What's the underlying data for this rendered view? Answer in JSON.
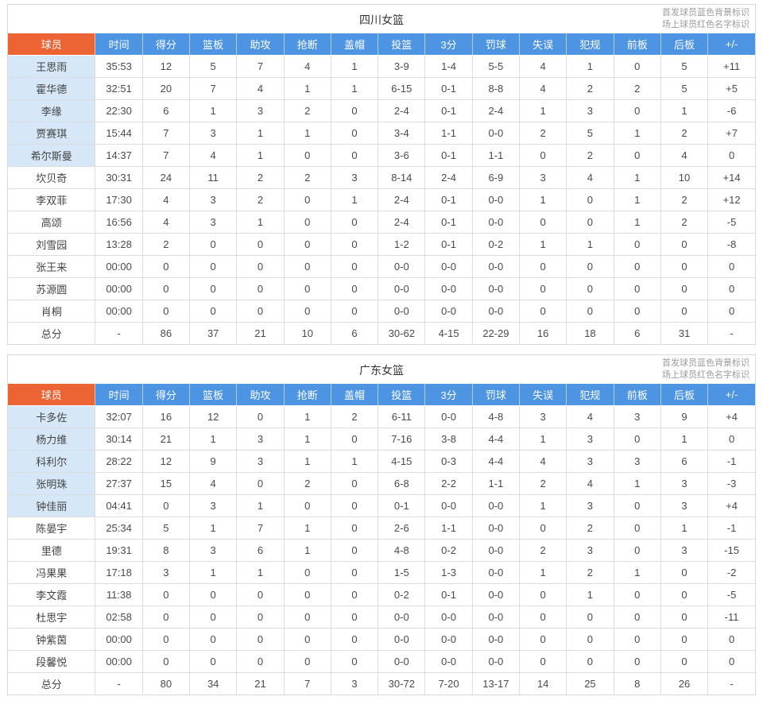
{
  "legend": {
    "line1": "首发球员蓝色背景标识",
    "line2": "场上球员红色名字标识"
  },
  "columns": [
    "球员",
    "时间",
    "得分",
    "篮板",
    "助攻",
    "抢断",
    "盖帽",
    "投篮",
    "3分",
    "罚球",
    "失误",
    "犯规",
    "前板",
    "后板",
    "+/-"
  ],
  "colors": {
    "header_player_bg": "#ec6434",
    "header_stat_bg": "#4d94e3",
    "starter_row_bg": "#d6e7f8",
    "oncourt_name_color": "#e05a4e"
  },
  "tables": [
    {
      "title": "四川女篮",
      "rows": [
        {
          "name": "王思雨",
          "starter": true,
          "cells": [
            "35:53",
            "12",
            "5",
            "7",
            "4",
            "1",
            "3-9",
            "1-4",
            "5-5",
            "4",
            "1",
            "0",
            "5",
            "+11"
          ]
        },
        {
          "name": "霍华德",
          "starter": true,
          "cells": [
            "32:51",
            "20",
            "7",
            "4",
            "1",
            "1",
            "6-15",
            "0-1",
            "8-8",
            "4",
            "2",
            "2",
            "5",
            "+5"
          ]
        },
        {
          "name": "李缘",
          "starter": true,
          "cells": [
            "22:30",
            "6",
            "1",
            "3",
            "2",
            "0",
            "2-4",
            "0-1",
            "2-4",
            "1",
            "3",
            "0",
            "1",
            "-6"
          ]
        },
        {
          "name": "贾赛琪",
          "starter": true,
          "cells": [
            "15:44",
            "7",
            "3",
            "1",
            "1",
            "0",
            "3-4",
            "1-1",
            "0-0",
            "2",
            "5",
            "1",
            "2",
            "+7"
          ]
        },
        {
          "name": "希尔斯曼",
          "starter": true,
          "cells": [
            "14:37",
            "7",
            "4",
            "1",
            "0",
            "0",
            "3-6",
            "0-1",
            "1-1",
            "0",
            "2",
            "0",
            "4",
            "0"
          ]
        },
        {
          "name": "坎贝奇",
          "starter": false,
          "cells": [
            "30:31",
            "24",
            "11",
            "2",
            "2",
            "3",
            "8-14",
            "2-4",
            "6-9",
            "3",
            "4",
            "1",
            "10",
            "+14"
          ]
        },
        {
          "name": "李双菲",
          "starter": false,
          "cells": [
            "17:30",
            "4",
            "3",
            "2",
            "0",
            "1",
            "2-4",
            "0-1",
            "0-0",
            "1",
            "0",
            "1",
            "2",
            "+12"
          ]
        },
        {
          "name": "高颂",
          "starter": false,
          "cells": [
            "16:56",
            "4",
            "3",
            "1",
            "0",
            "0",
            "2-4",
            "0-1",
            "0-0",
            "0",
            "0",
            "1",
            "2",
            "-5"
          ]
        },
        {
          "name": "刘雪园",
          "starter": false,
          "cells": [
            "13:28",
            "2",
            "0",
            "0",
            "0",
            "0",
            "1-2",
            "0-1",
            "0-2",
            "1",
            "1",
            "0",
            "0",
            "-8"
          ]
        },
        {
          "name": "张王来",
          "starter": false,
          "cells": [
            "00:00",
            "0",
            "0",
            "0",
            "0",
            "0",
            "0-0",
            "0-0",
            "0-0",
            "0",
            "0",
            "0",
            "0",
            "0"
          ]
        },
        {
          "name": "苏源圆",
          "starter": false,
          "cells": [
            "00:00",
            "0",
            "0",
            "0",
            "0",
            "0",
            "0-0",
            "0-0",
            "0-0",
            "0",
            "0",
            "0",
            "0",
            "0"
          ]
        },
        {
          "name": "肖桐",
          "starter": false,
          "cells": [
            "00:00",
            "0",
            "0",
            "0",
            "0",
            "0",
            "0-0",
            "0-0",
            "0-0",
            "0",
            "0",
            "0",
            "0",
            "0"
          ]
        }
      ],
      "total": {
        "name": "总分",
        "cells": [
          "-",
          "86",
          "37",
          "21",
          "10",
          "6",
          "30-62",
          "4-15",
          "22-29",
          "16",
          "18",
          "6",
          "31",
          "-"
        ]
      }
    },
    {
      "title": "广东女篮",
      "rows": [
        {
          "name": "卡多佐",
          "starter": true,
          "cells": [
            "32:07",
            "16",
            "12",
            "0",
            "1",
            "2",
            "6-11",
            "0-0",
            "4-8",
            "3",
            "4",
            "3",
            "9",
            "+4"
          ]
        },
        {
          "name": "杨力维",
          "starter": true,
          "cells": [
            "30:14",
            "21",
            "1",
            "3",
            "1",
            "0",
            "7-16",
            "3-8",
            "4-4",
            "1",
            "3",
            "0",
            "1",
            "0"
          ]
        },
        {
          "name": "科利尔",
          "starter": true,
          "cells": [
            "28:22",
            "12",
            "9",
            "3",
            "1",
            "1",
            "4-15",
            "0-3",
            "4-4",
            "4",
            "3",
            "3",
            "6",
            "-1"
          ]
        },
        {
          "name": "张明珠",
          "starter": true,
          "cells": [
            "27:37",
            "15",
            "4",
            "0",
            "2",
            "0",
            "6-8",
            "2-2",
            "1-1",
            "2",
            "4",
            "1",
            "3",
            "-3"
          ]
        },
        {
          "name": "钟佳丽",
          "starter": true,
          "cells": [
            "04:41",
            "0",
            "3",
            "1",
            "0",
            "0",
            "0-1",
            "0-0",
            "0-0",
            "1",
            "3",
            "0",
            "3",
            "+4"
          ]
        },
        {
          "name": "陈晏宇",
          "starter": false,
          "cells": [
            "25:34",
            "5",
            "1",
            "7",
            "1",
            "0",
            "2-6",
            "1-1",
            "0-0",
            "0",
            "2",
            "0",
            "1",
            "-1"
          ]
        },
        {
          "name": "里德",
          "starter": false,
          "cells": [
            "19:31",
            "8",
            "3",
            "6",
            "1",
            "0",
            "4-8",
            "0-2",
            "0-0",
            "2",
            "3",
            "0",
            "3",
            "-15"
          ]
        },
        {
          "name": "冯果果",
          "starter": false,
          "cells": [
            "17:18",
            "3",
            "1",
            "1",
            "0",
            "0",
            "1-5",
            "1-3",
            "0-0",
            "1",
            "2",
            "1",
            "0",
            "-2"
          ]
        },
        {
          "name": "李文霞",
          "starter": false,
          "cells": [
            "11:38",
            "0",
            "0",
            "0",
            "0",
            "0",
            "0-2",
            "0-1",
            "0-0",
            "0",
            "1",
            "0",
            "0",
            "-5"
          ]
        },
        {
          "name": "杜思宇",
          "starter": false,
          "cells": [
            "02:58",
            "0",
            "0",
            "0",
            "0",
            "0",
            "0-0",
            "0-0",
            "0-0",
            "0",
            "0",
            "0",
            "0",
            "-11"
          ]
        },
        {
          "name": "钟紫茵",
          "starter": false,
          "cells": [
            "00:00",
            "0",
            "0",
            "0",
            "0",
            "0",
            "0-0",
            "0-0",
            "0-0",
            "0",
            "0",
            "0",
            "0",
            "0"
          ]
        },
        {
          "name": "段馨悦",
          "starter": false,
          "cells": [
            "00:00",
            "0",
            "0",
            "0",
            "0",
            "0",
            "0-0",
            "0-0",
            "0-0",
            "0",
            "0",
            "0",
            "0",
            "0"
          ]
        }
      ],
      "total": {
        "name": "总分",
        "cells": [
          "-",
          "80",
          "34",
          "21",
          "7",
          "3",
          "30-72",
          "7-20",
          "13-17",
          "14",
          "25",
          "8",
          "26",
          "-"
        ]
      }
    }
  ]
}
